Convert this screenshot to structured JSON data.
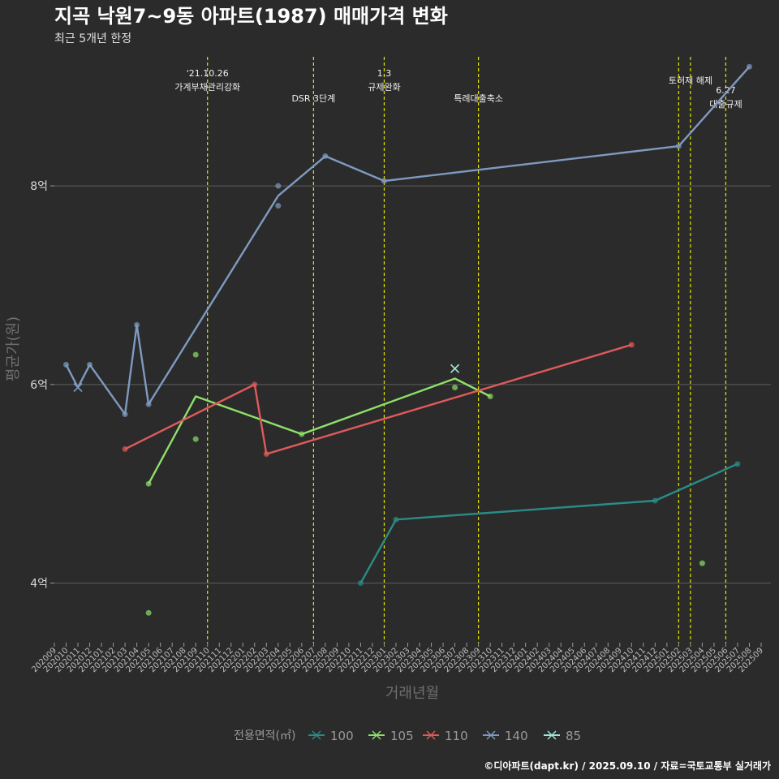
{
  "chart_data": {
    "type": "line",
    "title": "지곡 낙원7~9동 아파트(1987) 매매가격 변화",
    "subtitle": "최근 5개년 한정",
    "xlabel": "거래년월",
    "ylabel": "평균가(원)",
    "caption": "©디아파트(dapt.kr) / 2025.09.10 / 자료=국토교통부 실거래가",
    "legend_title": "전용면적(㎡)",
    "legend_position": "bottom",
    "grid": true,
    "ylim": [
      3.4,
      9.3
    ],
    "yticks": [
      4,
      6,
      8
    ],
    "ytick_labels": [
      "4억",
      "6억",
      "8억"
    ],
    "x_months": [
      "202009",
      "202010",
      "202011",
      "202012",
      "202101",
      "202102",
      "202103",
      "202104",
      "202105",
      "202106",
      "202107",
      "202108",
      "202109",
      "202110",
      "202111",
      "202112",
      "202201",
      "202202",
      "202203",
      "202204",
      "202205",
      "202206",
      "202207",
      "202208",
      "202209",
      "202210",
      "202211",
      "202212",
      "202301",
      "202302",
      "202303",
      "202304",
      "202305",
      "202306",
      "202307",
      "202308",
      "202309",
      "202310",
      "202311",
      "202312",
      "202401",
      "202402",
      "202403",
      "202404",
      "202405",
      "202406",
      "202407",
      "202408",
      "202409",
      "202410",
      "202411",
      "202412",
      "202501",
      "202502",
      "202503",
      "202504",
      "202505",
      "202506",
      "202507",
      "202508",
      "202509"
    ],
    "x_tick_labels": [
      "202009",
      "202010",
      "202011",
      "202012",
      "202101",
      "202102",
      "202103",
      "202104",
      "202105",
      "202106",
      "202107",
      "202108",
      "202109",
      "202110",
      "202111",
      "202112",
      "202201",
      "202202",
      "202203",
      "202204",
      "202205",
      "202206",
      "202207",
      "202208",
      "202209",
      "202210",
      "202211",
      "202212",
      "202301",
      "202302",
      "202303",
      "202304",
      "202305",
      "202306",
      "202307",
      "202308",
      "202309",
      "202310",
      "202311",
      "202312",
      "202401",
      "202402",
      "202403",
      "202404",
      "202405",
      "202406",
      "202407",
      "202408",
      "202409",
      "202410",
      "202411",
      "202412",
      "202501",
      "202502",
      "202503",
      "202504",
      "202505",
      "202506",
      "202507",
      "202508",
      "202509"
    ],
    "events": [
      {
        "x": "202110",
        "labels": [
          "'21.10.26",
          "가계부채관리강화"
        ],
        "row": 0
      },
      {
        "x": "202207",
        "labels": [
          "DSR 3단계"
        ],
        "row": 2
      },
      {
        "x": "202301",
        "labels": [
          "1.3",
          "규제완화"
        ],
        "row": 0
      },
      {
        "x": "202309",
        "labels": [
          "특례대출축소"
        ],
        "row": 2
      },
      {
        "x": "202502",
        "labels": [],
        "row": 1
      },
      {
        "x": "202503",
        "labels": [
          "토허제 해제"
        ],
        "row": 1
      },
      {
        "x": "202506",
        "labels": [
          "6.27",
          "대출규제"
        ],
        "row": 1.5
      }
    ],
    "series": [
      {
        "name": "100",
        "color": "#2a8c86",
        "line": [
          [
            "202211",
            4.0
          ],
          [
            "202302",
            4.64
          ],
          [
            "202412",
            4.83
          ],
          [
            "202507",
            5.2
          ]
        ],
        "points": [
          [
            "202211",
            4.0
          ],
          [
            "202302",
            4.64
          ],
          [
            "202412",
            4.83
          ],
          [
            "202507",
            5.2
          ]
        ]
      },
      {
        "name": "105",
        "color": "#8fe06a",
        "line": [
          [
            "202105",
            5.0
          ],
          [
            "202109",
            5.88
          ],
          [
            "202206",
            5.5
          ],
          [
            "202307",
            6.06
          ],
          [
            "202310",
            5.88
          ]
        ],
        "points": [
          [
            "202105",
            5.0
          ],
          [
            "202105",
            3.7
          ],
          [
            "202109",
            6.3
          ],
          [
            "202109",
            5.45
          ],
          [
            "202206",
            5.5
          ],
          [
            "202307",
            5.97
          ],
          [
            "202310",
            5.88
          ],
          [
            "202504",
            4.2
          ]
        ]
      },
      {
        "name": "110",
        "color": "#e05a5a",
        "line": [
          [
            "202103",
            5.35
          ],
          [
            "202202",
            6.0
          ],
          [
            "202203",
            5.3
          ],
          [
            "202410",
            6.4
          ]
        ],
        "points": [
          [
            "202103",
            5.35
          ],
          [
            "202202",
            6.0
          ],
          [
            "202203",
            5.3
          ],
          [
            "202410",
            6.4
          ]
        ]
      },
      {
        "name": "140",
        "color": "#7f9ac0",
        "line": [
          [
            "202010",
            6.2
          ],
          [
            "202011",
            5.97
          ],
          [
            "202012",
            6.2
          ],
          [
            "202103",
            5.7
          ],
          [
            "202104",
            6.6
          ],
          [
            "202105",
            5.8
          ],
          [
            "202204",
            7.9
          ],
          [
            "202208",
            8.3
          ],
          [
            "202301",
            8.05
          ],
          [
            "202502",
            8.4
          ],
          [
            "202508",
            9.2
          ]
        ],
        "points": [
          [
            "202010",
            6.2
          ],
          [
            "202012",
            6.2
          ],
          [
            "202103",
            5.7
          ],
          [
            "202104",
            6.6
          ],
          [
            "202105",
            5.8
          ],
          [
            "202204",
            8.0
          ],
          [
            "202204",
            7.8
          ],
          [
            "202208",
            8.3
          ],
          [
            "202301",
            8.05
          ],
          [
            "202502",
            8.4
          ],
          [
            "202508",
            9.2
          ]
        ],
        "cross_points": [
          [
            "202011",
            5.97
          ]
        ]
      },
      {
        "name": "85",
        "color": "#9fe6d8",
        "line": [],
        "points": [],
        "cross_points": [
          [
            "202307",
            6.16
          ]
        ]
      }
    ]
  }
}
